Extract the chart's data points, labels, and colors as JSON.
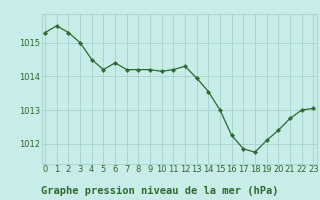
{
  "x": [
    0,
    1,
    2,
    3,
    4,
    5,
    6,
    7,
    8,
    9,
    10,
    11,
    12,
    13,
    14,
    15,
    16,
    17,
    18,
    19,
    20,
    21,
    22,
    23
  ],
  "y": [
    1015.3,
    1015.5,
    1015.3,
    1015.0,
    1014.5,
    1014.2,
    1014.4,
    1014.2,
    1014.2,
    1014.2,
    1014.15,
    1014.2,
    1014.3,
    1013.95,
    1013.55,
    1013.0,
    1012.25,
    1011.85,
    1011.75,
    1012.1,
    1012.4,
    1012.75,
    1013.0,
    1013.05
  ],
  "line_color": "#2d6a2d",
  "marker_color": "#2d6a2d",
  "bg_color": "#c8ece8",
  "grid_color": "#9ecdc8",
  "title": "Graphe pression niveau de la mer (hPa)",
  "ylabel_ticks": [
    1012,
    1013,
    1014,
    1015
  ],
  "xtick_labels": [
    "0",
    "1",
    "2",
    "3",
    "4",
    "5",
    "6",
    "7",
    "8",
    "9",
    "10",
    "11",
    "12",
    "13",
    "14",
    "15",
    "16",
    "17",
    "18",
    "19",
    "20",
    "21",
    "22",
    "23"
  ],
  "ylim": [
    1011.4,
    1015.85
  ],
  "xlim": [
    -0.3,
    23.3
  ],
  "title_fontsize": 7.5,
  "tick_fontsize": 6.0,
  "title_color": "#2d6a2d"
}
